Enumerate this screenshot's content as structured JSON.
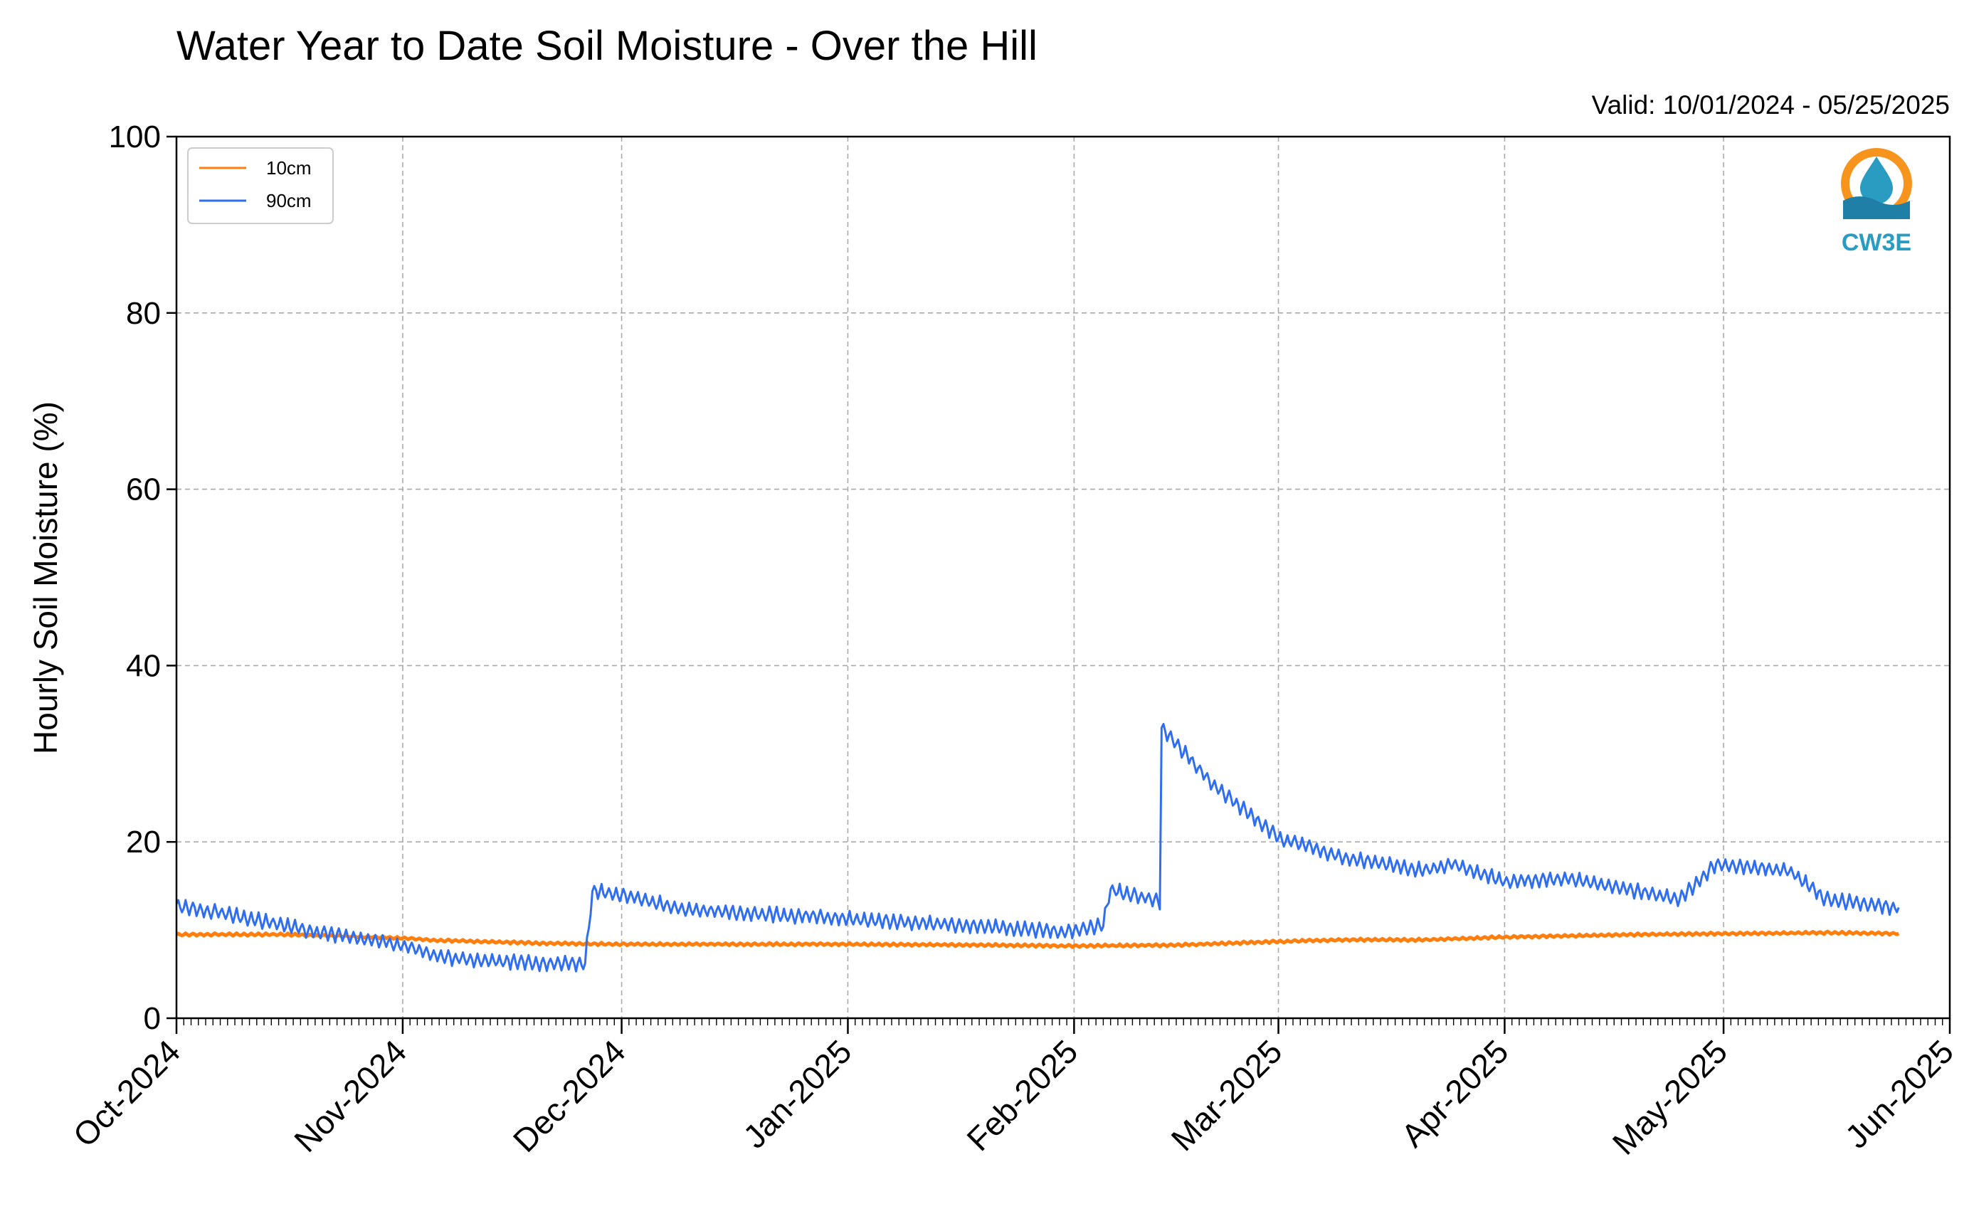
{
  "chart_data": {
    "type": "line",
    "title": "Water Year to Date Soil Moisture - Over the Hill",
    "subtitle": "Valid: 10/01/2024 - 05/25/2025",
    "ylabel": "Hourly Soil Moisture (%)",
    "xlabel": "",
    "ylim": [
      0,
      100
    ],
    "xlim": [
      "2024-10-01",
      "2025-06-01"
    ],
    "yticks": [
      0,
      20,
      40,
      60,
      80,
      100
    ],
    "xticks": [
      {
        "date": "2024-10-01",
        "label": "Oct-2024"
      },
      {
        "date": "2024-11-01",
        "label": "Nov-2024"
      },
      {
        "date": "2024-12-01",
        "label": "Dec-2024"
      },
      {
        "date": "2025-01-01",
        "label": "Jan-2025"
      },
      {
        "date": "2025-02-01",
        "label": "Feb-2025"
      },
      {
        "date": "2025-03-01",
        "label": "Mar-2025"
      },
      {
        "date": "2025-04-01",
        "label": "Apr-2025"
      },
      {
        "date": "2025-05-01",
        "label": "May-2025"
      },
      {
        "date": "2025-06-01",
        "label": "Jun-2025"
      }
    ],
    "grid": true,
    "legend_position": "top-left",
    "logo_text": "CW3E",
    "series": [
      {
        "name": "10cm",
        "color": "#ff7f0e",
        "points": [
          [
            "2024-10-01",
            9.5
          ],
          [
            "2024-10-15",
            9.5
          ],
          [
            "2024-11-01",
            9.1
          ],
          [
            "2024-11-06",
            8.8
          ],
          [
            "2024-11-08",
            8.8
          ],
          [
            "2024-11-20",
            8.5
          ],
          [
            "2024-12-01",
            8.4
          ],
          [
            "2025-01-01",
            8.4
          ],
          [
            "2025-01-20",
            8.3
          ],
          [
            "2025-02-01",
            8.2
          ],
          [
            "2025-02-15",
            8.3
          ],
          [
            "2025-03-01",
            8.7
          ],
          [
            "2025-03-10",
            8.9
          ],
          [
            "2025-03-21",
            8.9
          ],
          [
            "2025-04-01",
            9.2
          ],
          [
            "2025-04-20",
            9.5
          ],
          [
            "2025-05-01",
            9.6
          ],
          [
            "2025-05-15",
            9.7
          ],
          [
            "2025-05-25",
            9.6
          ]
        ]
      },
      {
        "name": "90cm",
        "color": "#2f6ef0",
        "points": [
          [
            "2024-10-01",
            12.8
          ],
          [
            "2024-10-10",
            11.5
          ],
          [
            "2024-10-20",
            9.8
          ],
          [
            "2024-11-01",
            8.3
          ],
          [
            "2024-11-06",
            7.0
          ],
          [
            "2024-11-08",
            6.8
          ],
          [
            "2024-11-20",
            6.2
          ],
          [
            "2024-11-26",
            6.2
          ],
          [
            "2024-11-27",
            14.5
          ],
          [
            "2024-12-01",
            14.0
          ],
          [
            "2024-12-10",
            12.3
          ],
          [
            "2025-01-01",
            11.3
          ],
          [
            "2025-01-20",
            10.4
          ],
          [
            "2025-01-31",
            9.8
          ],
          [
            "2025-02-05",
            10.6
          ],
          [
            "2025-02-06",
            14.6
          ],
          [
            "2025-02-13",
            13.2
          ],
          [
            "2025-02-13",
            33.0
          ],
          [
            "2025-02-20",
            26.5
          ],
          [
            "2025-03-01",
            20.5
          ],
          [
            "2025-03-10",
            18.2
          ],
          [
            "2025-03-21",
            16.8
          ],
          [
            "2025-03-25",
            17.5
          ],
          [
            "2025-04-01",
            15.5
          ],
          [
            "2025-04-10",
            15.8
          ],
          [
            "2025-04-25",
            13.5
          ],
          [
            "2025-04-30",
            17.5
          ],
          [
            "2025-05-10",
            16.8
          ],
          [
            "2025-05-15",
            13.5
          ],
          [
            "2025-05-25",
            12.5
          ]
        ]
      }
    ]
  }
}
